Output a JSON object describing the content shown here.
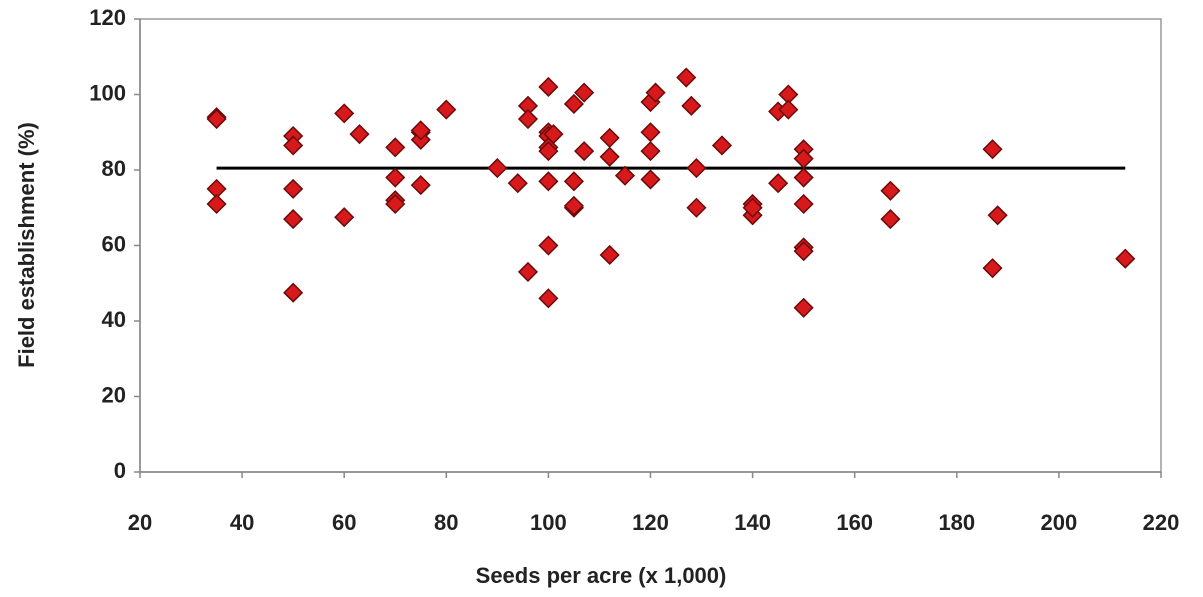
{
  "chart_data": {
    "type": "scatter",
    "xlabel": "Seeds per acre (x 1,000)",
    "ylabel": "Field establishment (%)",
    "xlim": [
      20,
      220
    ],
    "xticks": [
      20,
      40,
      60,
      80,
      100,
      120,
      140,
      160,
      180,
      200,
      220
    ],
    "ylim": [
      0,
      120
    ],
    "yticks": [
      0,
      20,
      40,
      60,
      80,
      100,
      120
    ],
    "grid": false,
    "series": [
      {
        "color": "#d7191c",
        "marker": "diamond",
        "x": [
          35,
          35,
          35,
          35,
          50,
          50,
          50,
          50,
          50,
          60,
          60,
          63,
          70,
          70,
          70,
          70,
          75,
          75,
          75,
          75,
          80,
          90,
          94,
          96,
          96,
          96,
          100,
          100,
          100,
          100,
          100,
          100,
          100,
          100,
          101,
          105,
          105,
          105,
          105,
          107,
          107,
          112,
          112,
          112,
          115,
          120,
          120,
          120,
          120,
          121,
          127,
          128,
          129,
          129,
          134,
          140,
          140,
          140,
          145,
          145,
          147,
          147,
          150,
          150,
          150,
          150,
          150,
          150,
          150,
          167,
          167,
          187,
          187,
          188,
          213
        ],
        "y": [
          94,
          93.5,
          75,
          71,
          89,
          86.5,
          75,
          67,
          47.5,
          95,
          67.5,
          89.5,
          86,
          78,
          72,
          71,
          90,
          88,
          76,
          90.5,
          96,
          80.5,
          76.5,
          97,
          93.5,
          53,
          102,
          90,
          89,
          86,
          85,
          77,
          60,
          46,
          89.5,
          97.5,
          77,
          70,
          70.5,
          100.5,
          85,
          88.5,
          83.5,
          57.5,
          78.5,
          98,
          90,
          85,
          77.5,
          100.5,
          104.5,
          97,
          80.5,
          70,
          86.5,
          71,
          68,
          70,
          95.5,
          76.5,
          100,
          96,
          85.5,
          83,
          78,
          71,
          59.5,
          58.5,
          43.5,
          74.5,
          67,
          85.5,
          54,
          68,
          56.5
        ]
      }
    ],
    "trend": {
      "color": "#000000",
      "x": [
        35,
        213
      ],
      "y": [
        80.5,
        80.5
      ]
    }
  }
}
